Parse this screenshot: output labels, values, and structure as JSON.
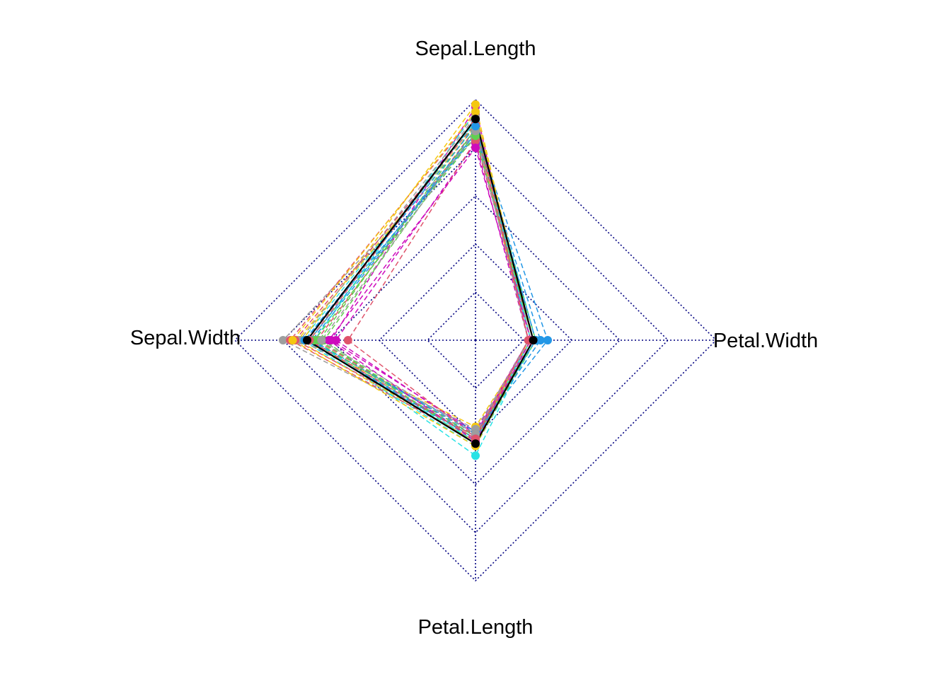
{
  "chart_data": {
    "type": "radar",
    "axes": [
      "Sepal.Length",
      "Petal.Width",
      "Petal.Length",
      "Sepal.Width"
    ],
    "scale": [
      0,
      1
    ],
    "grid_levels": 5,
    "grid_color": "#000080",
    "point_colors": [
      "#000000",
      "#DF536B",
      "#61D04F",
      "#2297E6",
      "#28E2E5",
      "#CD0BBC",
      "#F5C710",
      "#9E9E9E"
    ],
    "series": [
      {
        "values": [
          0.92,
          0.24,
          0.43,
          0.7
        ],
        "color": "#000000",
        "dashed": false
      },
      {
        "values": [
          0.88,
          0.22,
          0.4,
          0.66
        ],
        "color": "#DF536B",
        "dashed": true
      },
      {
        "values": [
          0.86,
          0.24,
          0.41,
          0.69
        ],
        "color": "#61D04F",
        "dashed": true
      },
      {
        "values": [
          0.85,
          0.23,
          0.4,
          0.71
        ],
        "color": "#2297E6",
        "dashed": true
      },
      {
        "values": [
          0.91,
          0.25,
          0.44,
          0.72
        ],
        "color": "#28E2E5",
        "dashed": true
      },
      {
        "values": [
          0.97,
          0.22,
          0.38,
          0.6
        ],
        "color": "#CD0BBC",
        "dashed": true
      },
      {
        "values": [
          0.98,
          0.23,
          0.36,
          0.72
        ],
        "color": "#F5C710",
        "dashed": true
      },
      {
        "values": [
          0.84,
          0.24,
          0.41,
          0.8
        ],
        "color": "#9E9E9E",
        "dashed": true
      },
      {
        "values": [
          0.94,
          0.22,
          0.42,
          0.77
        ],
        "color": "#DF536B",
        "dashed": true
      },
      {
        "values": [
          0.9,
          0.24,
          0.4,
          0.65
        ],
        "color": "#61D04F",
        "dashed": true
      },
      {
        "values": [
          0.87,
          0.3,
          0.38,
          0.69
        ],
        "color": "#2297E6",
        "dashed": true
      },
      {
        "values": [
          0.95,
          0.24,
          0.48,
          0.67
        ],
        "color": "#28E2E5",
        "dashed": true
      },
      {
        "values": [
          0.82,
          0.22,
          0.39,
          0.58
        ],
        "color": "#CD0BBC",
        "dashed": true
      },
      {
        "values": [
          0.89,
          0.22,
          0.42,
          0.74
        ],
        "color": "#F5C710",
        "dashed": true
      },
      {
        "values": [
          0.93,
          0.23,
          0.37,
          0.73
        ],
        "color": "#9E9E9E",
        "dashed": true
      },
      {
        "values": [
          0.83,
          0.24,
          0.4,
          0.53
        ],
        "color": "#DF536B",
        "dashed": true
      },
      {
        "values": [
          0.88,
          0.25,
          0.43,
          0.63
        ],
        "color": "#61D04F",
        "dashed": true
      },
      {
        "values": [
          0.86,
          0.27,
          0.39,
          0.68
        ],
        "color": "#2297E6",
        "dashed": true
      },
      {
        "values": [
          0.91,
          0.23,
          0.42,
          0.7
        ],
        "color": "#28E2E5",
        "dashed": true
      },
      {
        "values": [
          0.9,
          0.22,
          0.4,
          0.75
        ],
        "color": "#DF536B",
        "dashed": true
      },
      {
        "values": [
          0.85,
          0.24,
          0.41,
          0.67
        ],
        "color": "#61D04F",
        "dashed": true
      },
      {
        "values": [
          0.8,
          0.23,
          0.42,
          0.61
        ],
        "color": "#CD0BBC",
        "dashed": true
      },
      {
        "values": [
          0.95,
          0.24,
          0.44,
          0.76
        ],
        "color": "#F5C710",
        "dashed": true
      },
      {
        "values": [
          0.87,
          0.22,
          0.39,
          0.64
        ],
        "color": "#9E9E9E",
        "dashed": true
      },
      {
        "values": [
          0.89,
          0.25,
          0.41,
          0.71
        ],
        "color": "#2297E6",
        "dashed": true
      },
      {
        "values": [
          0.92,
          0.22,
          0.41,
          0.69
        ],
        "color": "#DF536B",
        "dashed": true
      }
    ]
  },
  "labels": {
    "sepal_length": "Sepal.Length",
    "petal_width": "Petal.Width",
    "petal_length": "Petal.Length",
    "sepal_width": "Sepal.Width"
  }
}
